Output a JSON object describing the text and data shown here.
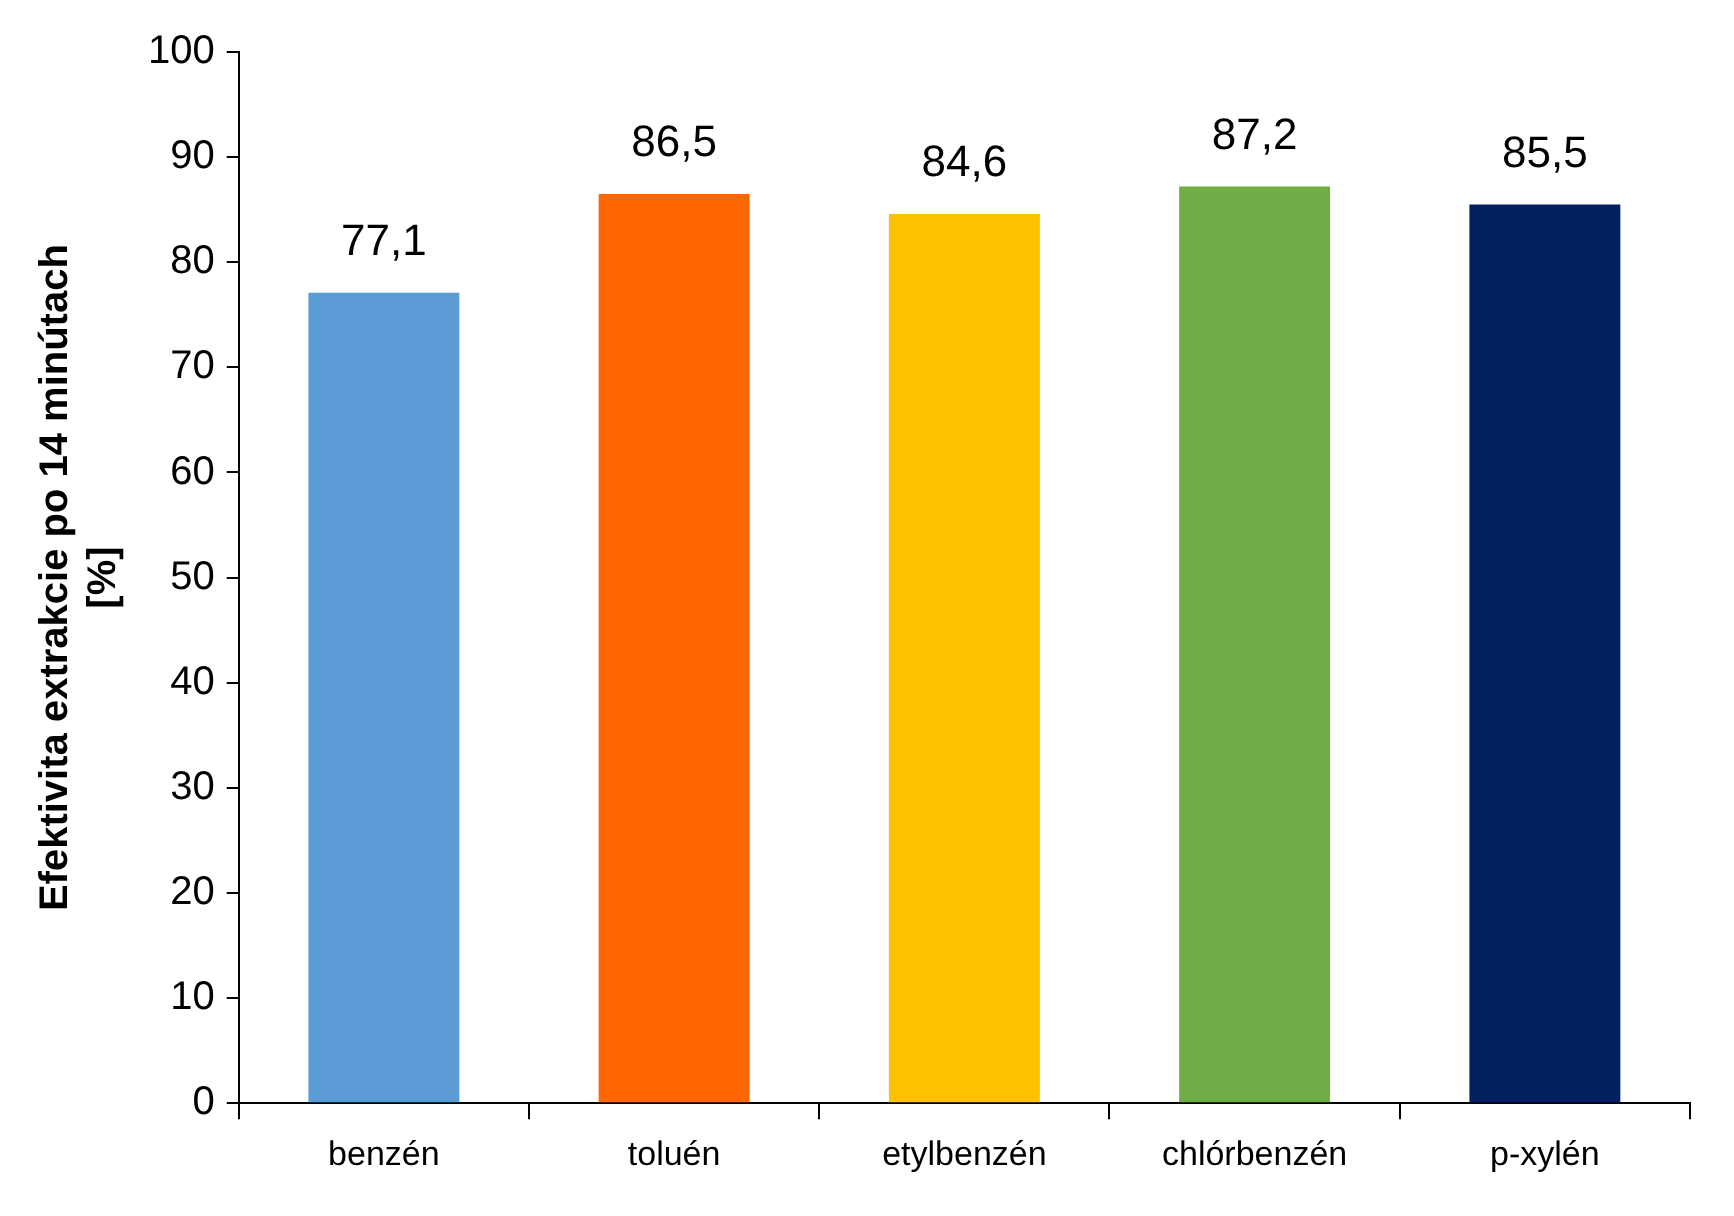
{
  "chart_data": {
    "type": "bar",
    "ylabel": "Efektivita extrakcie po 14 minútach [%]",
    "categories": [
      "benzén",
      "toluén",
      "etylbenzén",
      "chlórbenzén",
      "p-xylén"
    ],
    "values": [
      77.1,
      86.5,
      84.6,
      87.2,
      85.5
    ],
    "colors": [
      "#5b9bd5",
      "#ff6600",
      "#ffc000",
      "#70ad47",
      "#002060"
    ],
    "value_labels": [
      "77,1",
      "86,5",
      "84,6",
      "87,2",
      "85,5"
    ],
    "ylim": [
      0,
      100
    ],
    "yticks": [
      0,
      10,
      20,
      30,
      40,
      50,
      60,
      70,
      80,
      90,
      100
    ],
    "grid": false,
    "legend": false
  }
}
